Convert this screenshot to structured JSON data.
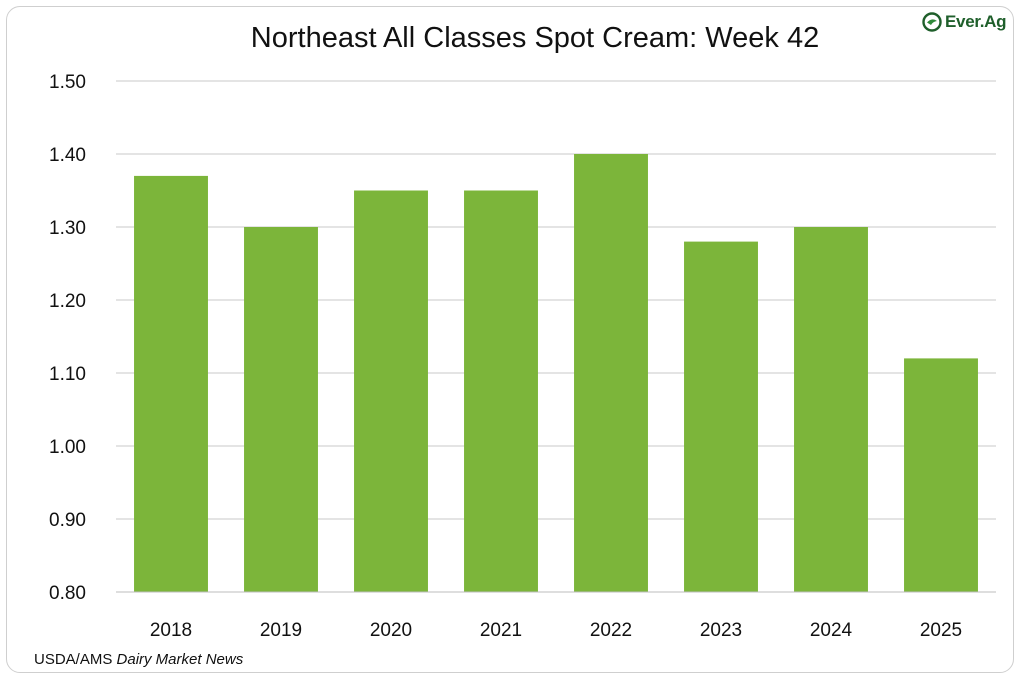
{
  "title": "Northeast All Classes Spot Cream: Week 42",
  "logo": {
    "text": "Ever.Ag",
    "icon": "ever-ag-leaf-icon",
    "color": "#1f5f2b"
  },
  "source": {
    "prefix": "USDA/AMS ",
    "italic": "Dairy Market News"
  },
  "chart_data": {
    "type": "bar",
    "title": "Northeast All Classes Spot Cream: Week 42",
    "xlabel": "",
    "ylabel": "",
    "categories": [
      "2018",
      "2019",
      "2020",
      "2021",
      "2022",
      "2023",
      "2024",
      "2025"
    ],
    "values": [
      1.37,
      1.3,
      1.35,
      1.35,
      1.4,
      1.28,
      1.3,
      1.12
    ],
    "ylim": [
      0.8,
      1.5
    ],
    "yticks": [
      "0.80",
      "0.90",
      "1.00",
      "1.10",
      "1.20",
      "1.30",
      "1.40",
      "1.50"
    ],
    "bar_color": "#7cb53a",
    "grid": true,
    "legend": "none"
  }
}
